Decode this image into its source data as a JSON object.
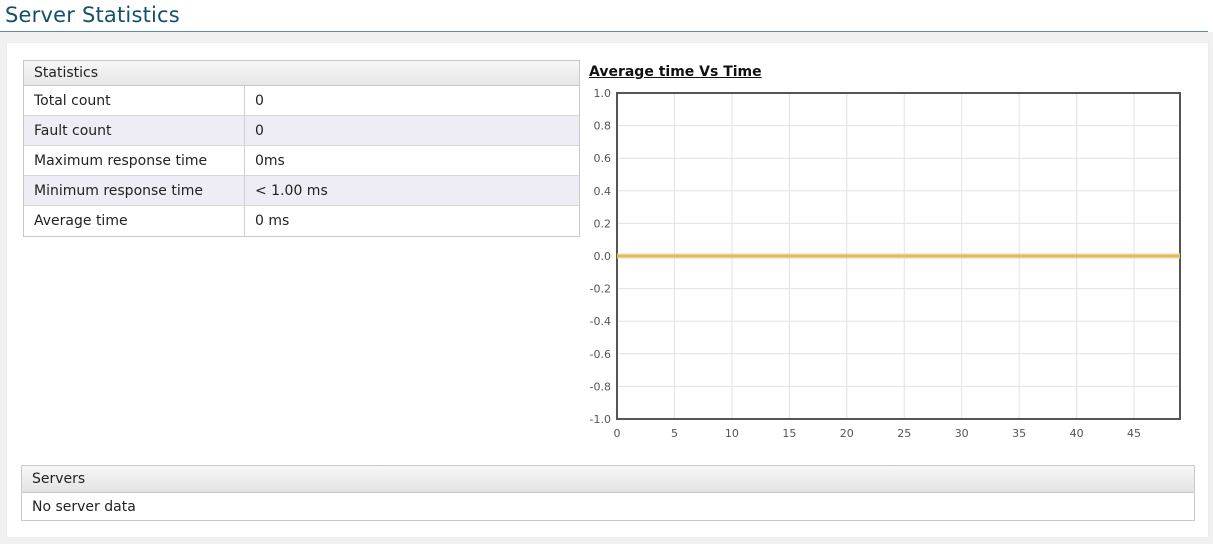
{
  "page": {
    "title": "Server Statistics"
  },
  "statistics": {
    "header": "Statistics",
    "rows": [
      {
        "label": "Total count",
        "value": "0"
      },
      {
        "label": "Fault count",
        "value": "0"
      },
      {
        "label": "Maximum response time",
        "value": "0ms"
      },
      {
        "label": "Minimum response time",
        "value": "< 1.00 ms"
      },
      {
        "label": "Average time",
        "value": "0 ms"
      }
    ]
  },
  "chart_data": {
    "type": "line",
    "title": "Average time Vs Time",
    "xlabel": "",
    "ylabel": "",
    "xlim": [
      0,
      49
    ],
    "ylim": [
      -1.0,
      1.0
    ],
    "x_ticks": [
      "0",
      "5",
      "10",
      "15",
      "20",
      "25",
      "30",
      "35",
      "40",
      "45"
    ],
    "y_ticks": [
      "1.0",
      "0.8",
      "0.6",
      "0.4",
      "0.2",
      "0.0",
      "-0.2",
      "-0.4",
      "-0.6",
      "-0.8",
      "-1.0"
    ],
    "grid": true,
    "series": [
      {
        "x": [
          0,
          49
        ],
        "values": [
          0,
          0
        ],
        "color": "#f0b93c"
      }
    ]
  },
  "servers": {
    "header": "Servers",
    "empty_text": "No server data"
  }
}
